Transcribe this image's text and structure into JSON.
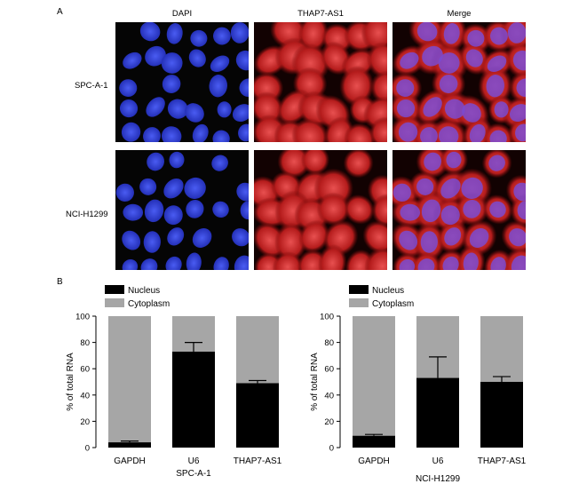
{
  "figure": {
    "panel_a_label": "A",
    "panel_b_label": "B",
    "columns": [
      "DAPI",
      "THAP7-AS1",
      "Merge"
    ],
    "rows": [
      "SPC-A-1",
      "NCI-H1299"
    ]
  },
  "colors": {
    "nucleus": "#000000",
    "cytoplasm": "#a6a6a6",
    "dapi": "#2f3fd6",
    "thap7": "#d42a2a",
    "background": "#050505"
  },
  "chart_data": [
    {
      "type": "bar",
      "stacked": true,
      "title": "",
      "subtitle": "SPC-A-1",
      "xlabel": "",
      "ylabel": "% of total RNA",
      "ylim": [
        0,
        100
      ],
      "yticks": [
        0,
        20,
        40,
        60,
        80,
        100
      ],
      "categories": [
        "GAPDH",
        "U6",
        "THAP7-AS1"
      ],
      "series": [
        {
          "name": "Nucleus",
          "values": [
            4,
            73,
            49
          ],
          "error": [
            1,
            7,
            2
          ]
        },
        {
          "name": "Cytoplasm",
          "values": [
            96,
            27,
            51
          ]
        }
      ],
      "legend": "top-left",
      "grid": false
    },
    {
      "type": "bar",
      "stacked": true,
      "title": "",
      "subtitle": "NCI-H1299",
      "xlabel": "",
      "ylabel": "% of total RNA",
      "ylim": [
        0,
        100
      ],
      "yticks": [
        0,
        20,
        40,
        60,
        80,
        100
      ],
      "categories": [
        "GAPDH",
        "U6",
        "THAP7-AS1"
      ],
      "series": [
        {
          "name": "Nucleus",
          "values": [
            9,
            53,
            50
          ],
          "error": [
            1,
            16,
            4
          ]
        },
        {
          "name": "Cytoplasm",
          "values": [
            91,
            47,
            50
          ]
        }
      ],
      "legend": "top-left",
      "grid": false
    }
  ]
}
